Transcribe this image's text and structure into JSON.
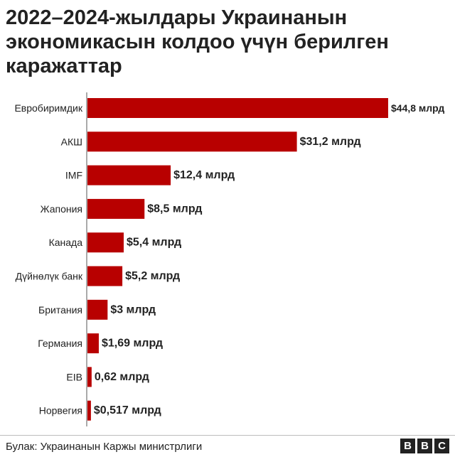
{
  "title_lines": [
    "2022–2024-жылдары Украинанын",
    "экономикасын колдоо үчүн берилген",
    "каражаттар"
  ],
  "source": "Булак: Украинанын Каржы министрлиги",
  "brand": {
    "letters": [
      "B",
      "B",
      "C"
    ]
  },
  "colors": {
    "bar": "#b80000",
    "text": "#222222"
  },
  "chart_data": {
    "type": "bar",
    "orientation": "horizontal",
    "categories": [
      "Евробиримдик",
      "АКШ",
      "IMF",
      "Жапония",
      "Канада",
      "Дүйнөлүк банк",
      "Британия",
      "Германия",
      "EIB",
      "Норвегия"
    ],
    "values": [
      44.8,
      31.2,
      12.4,
      8.5,
      5.4,
      5.2,
      3,
      1.69,
      0.62,
      0.517
    ],
    "data_labels": [
      "$44,8 млрд",
      "$31,2 млрд",
      "$12,4 млрд",
      "$8,5 млрд",
      "$5,4 млрд",
      "$5,2 млрд",
      "$3 млрд",
      "$1,69 млрд",
      "0,62 млрд",
      "$0,517 млрд"
    ],
    "xlim": [
      0,
      44.8
    ],
    "grid": false,
    "legend": "none"
  }
}
